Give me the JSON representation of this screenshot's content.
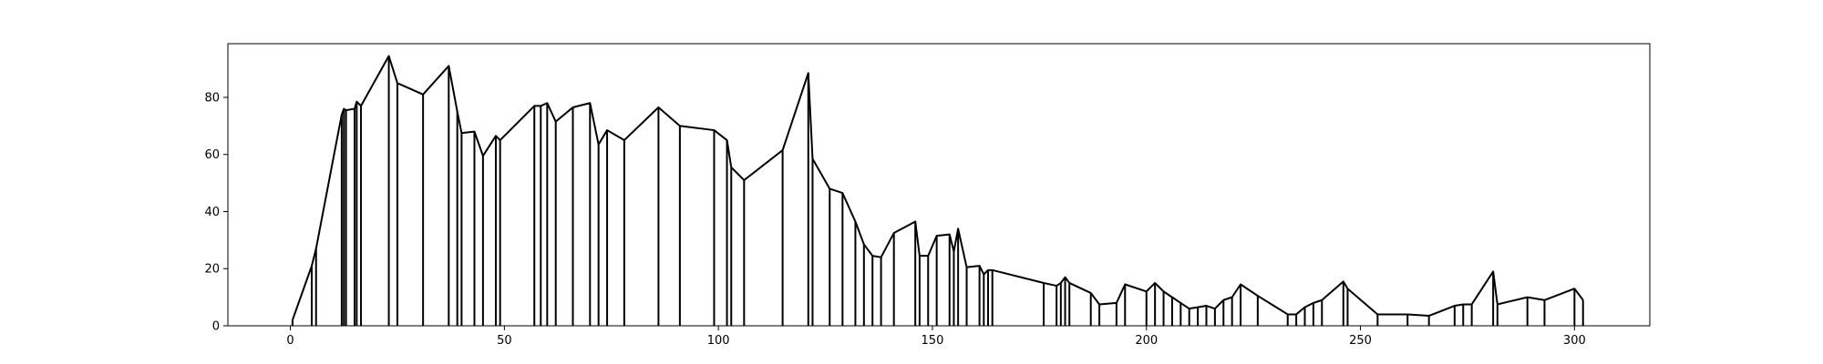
{
  "chart_data": {
    "type": "line",
    "title": "",
    "xlabel": "",
    "ylabel": "",
    "xlim": [
      -14.6,
      317.6
    ],
    "ylim": [
      0,
      98.8
    ],
    "xticks": [
      0,
      50,
      100,
      150,
      200,
      250,
      300
    ],
    "yticks": [
      0,
      20,
      40,
      60,
      80
    ],
    "grid": false,
    "legend": "none",
    "line_color": "#000000",
    "drop_lines": true,
    "series": [
      {
        "x": [
          0.5,
          5,
          6,
          12,
          12.5,
          13,
          15,
          15.5,
          16.5,
          23,
          25,
          31,
          37,
          39,
          40,
          43,
          45,
          48,
          49,
          57,
          58.5,
          60,
          62,
          66,
          70,
          72,
          74,
          78,
          86,
          91,
          99,
          102,
          103,
          106,
          115,
          121,
          122,
          126,
          129,
          132,
          134,
          136,
          138,
          141,
          146,
          147,
          149,
          151,
          154,
          155,
          156,
          158,
          161,
          162,
          163,
          164,
          176,
          179,
          180,
          181,
          182,
          187,
          189,
          193,
          195,
          200,
          202,
          204,
          206,
          208,
          210,
          212,
          214,
          216,
          218,
          220,
          222,
          226,
          233,
          235,
          237,
          239,
          241,
          246,
          247,
          254,
          261,
          266,
          272,
          274,
          276,
          281,
          282,
          289,
          293,
          300,
          302
        ],
        "y": [
          2,
          21,
          27,
          74,
          76,
          75.5,
          76,
          78.5,
          77,
          94.5,
          85,
          81,
          91,
          75,
          67.5,
          68,
          59.5,
          66.5,
          65,
          77,
          77,
          78,
          71.5,
          76.5,
          78,
          63.5,
          68.5,
          65,
          76.5,
          70,
          68.5,
          65,
          55.5,
          51,
          61.5,
          88.5,
          58.5,
          48,
          46.5,
          36.5,
          28.5,
          24.5,
          24,
          32.5,
          36.5,
          24.5,
          24.5,
          31.5,
          32,
          26,
          34,
          20.5,
          21,
          18,
          19.5,
          19.5,
          15,
          14,
          15,
          17,
          15,
          11.5,
          7.5,
          8,
          14.5,
          12,
          15,
          12,
          10,
          8,
          6,
          6.5,
          7,
          6,
          9,
          10,
          14.5,
          10.5,
          4,
          4,
          6.5,
          8,
          9,
          15.5,
          13,
          4,
          4,
          3.5,
          7,
          7.5,
          7.5,
          19,
          7.5,
          10,
          9,
          13,
          9
        ]
      }
    ]
  }
}
